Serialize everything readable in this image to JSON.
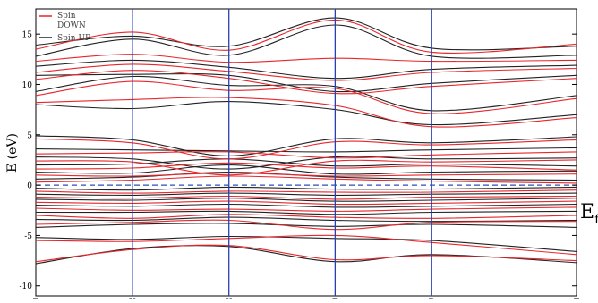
{
  "chart_data": {
    "type": "line",
    "ylabel": "E (eV)",
    "ylim": [
      -11,
      17.5
    ],
    "yticks": [
      -10,
      -5,
      0,
      5,
      10,
      15
    ],
    "k_points": [
      "Γ",
      "Y",
      "X",
      "Z",
      "R",
      "Γ"
    ],
    "k_positions": [
      0,
      1.0,
      1.0,
      1.1,
      1.0,
      1.5
    ],
    "fermi_level": 0,
    "fermi_label": "E",
    "fermi_subscript": "f",
    "grid": false,
    "legend_position": "top-left",
    "series": [
      {
        "name": "Spin DOWN",
        "color": "#e8262b",
        "bands": [
          [
            -7.6,
            -6.4,
            -6.0,
            -7.4,
            -7.0,
            -7.5
          ],
          [
            -5.5,
            -5.6,
            -5.3,
            -5.0,
            -5.7,
            -6.9
          ],
          [
            -3.9,
            -3.7,
            -3.5,
            -4.4,
            -3.7,
            -3.6
          ],
          [
            -3.0,
            -3.3,
            -2.9,
            -3.2,
            -3.3,
            -3.0
          ],
          [
            -2.3,
            -2.5,
            -2.4,
            -2.6,
            -2.4,
            -2.2
          ],
          [
            -1.7,
            -1.8,
            -1.6,
            -1.9,
            -1.8,
            -1.6
          ],
          [
            -1.2,
            -1.3,
            -1.1,
            -1.4,
            -1.2,
            -1.1
          ],
          [
            -0.6,
            -0.8,
            -0.6,
            -0.7,
            -0.7,
            -0.5
          ],
          [
            0.3,
            0.5,
            0.9,
            0.6,
            0.4,
            0.2
          ],
          [
            1.0,
            0.9,
            1.2,
            0.9,
            1.0,
            1.1
          ],
          [
            1.6,
            1.7,
            2.2,
            1.7,
            1.9,
            1.5
          ],
          [
            2.4,
            2.3,
            1.0,
            2.4,
            2.3,
            2.5
          ],
          [
            3.1,
            3.2,
            3.3,
            2.7,
            3.0,
            3.3
          ],
          [
            4.6,
            4.2,
            2.6,
            4.3,
            4.0,
            4.5
          ],
          [
            8.2,
            8.5,
            8.7,
            7.9,
            5.8,
            6.7
          ],
          [
            8.9,
            10.3,
            9.4,
            9.6,
            7.1,
            8.6
          ],
          [
            10.5,
            11.4,
            10.6,
            9.1,
            9.8,
            10.6
          ],
          [
            11.2,
            12.0,
            11.3,
            10.4,
            11.2,
            11.6
          ],
          [
            12.3,
            13.0,
            12.2,
            12.6,
            12.3,
            12.4
          ],
          [
            13.5,
            15.2,
            13.4,
            16.4,
            13.2,
            14.0
          ]
        ]
      },
      {
        "name": "Spin UP",
        "color": "#222222",
        "bands": [
          [
            -7.8,
            -6.3,
            -6.1,
            -7.6,
            -6.9,
            -7.7
          ],
          [
            -5.2,
            -5.4,
            -5.1,
            -5.3,
            -5.5,
            -6.6
          ],
          [
            -4.2,
            -3.9,
            -3.8,
            -4.1,
            -3.9,
            -4.2
          ],
          [
            -3.4,
            -3.5,
            -3.2,
            -3.5,
            -3.6,
            -3.5
          ],
          [
            -2.7,
            -2.7,
            -2.6,
            -2.9,
            -2.7,
            -2.6
          ],
          [
            -2.0,
            -2.1,
            -1.9,
            -2.2,
            -2.1,
            -1.9
          ],
          [
            -1.4,
            -1.5,
            -1.3,
            -1.6,
            -1.5,
            -1.3
          ],
          [
            -0.9,
            -1.0,
            -0.8,
            -1.0,
            -0.9,
            -0.8
          ],
          [
            -0.3,
            -0.5,
            -0.2,
            -0.4,
            -0.4,
            -0.2
          ],
          [
            0.6,
            0.8,
            1.3,
            0.8,
            0.6,
            0.5
          ],
          [
            1.3,
            1.2,
            2.0,
            1.1,
            1.3,
            1.4
          ],
          [
            2.0,
            2.1,
            2.6,
            1.9,
            2.1,
            1.9
          ],
          [
            2.8,
            2.6,
            1.6,
            2.8,
            2.6,
            2.7
          ],
          [
            3.6,
            3.5,
            3.4,
            3.3,
            3.5,
            3.7
          ],
          [
            4.9,
            4.5,
            2.9,
            4.6,
            4.2,
            4.8
          ],
          [
            8.0,
            7.6,
            8.3,
            7.5,
            6.0,
            7.0
          ],
          [
            9.3,
            10.8,
            9.9,
            9.8,
            7.4,
            8.9
          ],
          [
            10.9,
            11.0,
            10.9,
            9.3,
            10.1,
            10.9
          ],
          [
            11.8,
            12.4,
            11.7,
            10.6,
            11.5,
            11.9
          ],
          [
            12.8,
            14.5,
            12.9,
            15.9,
            12.8,
            12.9
          ],
          [
            13.9,
            14.8,
            13.8,
            16.6,
            13.6,
            13.8
          ]
        ]
      }
    ]
  }
}
